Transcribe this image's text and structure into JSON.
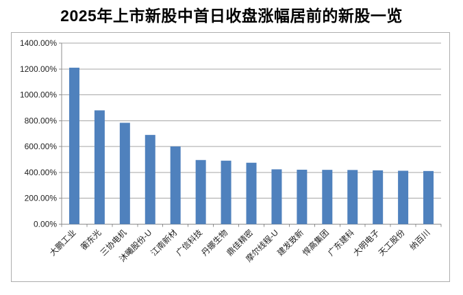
{
  "chart_data": {
    "type": "bar",
    "title": "2025年上市新股中首日收盘涨幅居前的新股一览",
    "xlabel": "",
    "ylabel": "",
    "categories": [
      "大鹏工业",
      "蘅东光",
      "三协电机",
      "沐曦股份-U",
      "江南新材",
      "广信科技",
      "丹娜生物",
      "鼎佳精密",
      "摩尔线程-U",
      "建发致新",
      "悍高集团",
      "广东建科",
      "大明电子",
      "天工股份",
      "纳百川"
    ],
    "values": [
      1210,
      880,
      784,
      690,
      601,
      496,
      491,
      475,
      424,
      421,
      420,
      419,
      416,
      413,
      411
    ],
    "value_unit": "%",
    "ylim": [
      0,
      1400
    ],
    "y_step": 200,
    "y_ticks": [
      "0.00%",
      "200.00%",
      "400.00%",
      "600.00%",
      "800.00%",
      "1000.00%",
      "1200.00%",
      "1400.00%"
    ],
    "grid": true,
    "legend_position": "none",
    "bar_color": "#4F81BD",
    "gridline_color": "#A6A6A6",
    "axis_color": "#8C8C8C",
    "tick_label_color": "#1F1F1F"
  }
}
